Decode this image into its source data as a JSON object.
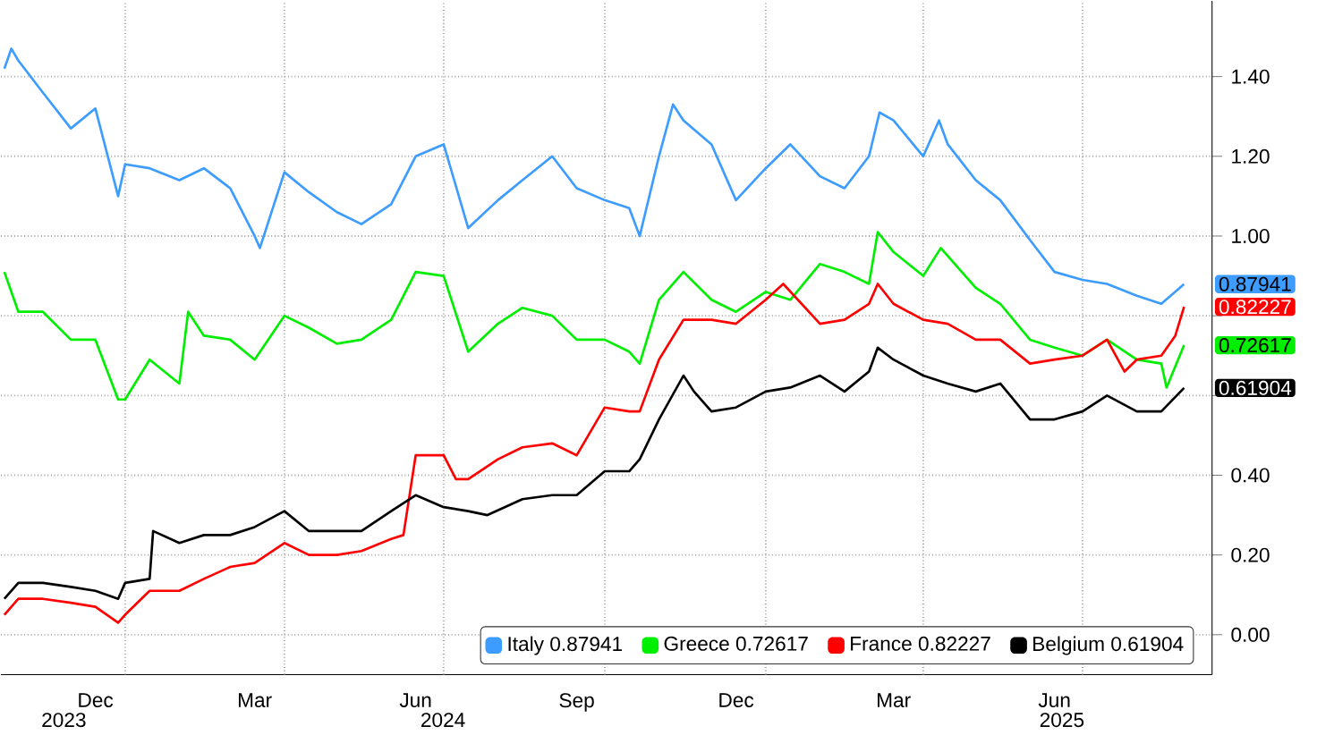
{
  "chart_data": {
    "type": "line",
    "xlim": [
      "2023-10-22",
      "2025-09-13"
    ],
    "ylim": [
      -0.1,
      1.59
    ],
    "xticks": [
      {
        "value": "2023-12-15",
        "label": "Dec"
      },
      {
        "value": "2024-03-15",
        "label": "Mar"
      },
      {
        "value": "2024-06-15",
        "label": "Jun"
      },
      {
        "value": "2024-09-15",
        "label": "Sep"
      },
      {
        "value": "2024-12-15",
        "label": "Dec"
      },
      {
        "value": "2025-03-15",
        "label": "Mar"
      },
      {
        "value": "2025-06-15",
        "label": "Jun"
      },
      {
        "value": "2024-01-01",
        "label": null
      },
      {
        "value": "2024-04-01",
        "label": null
      },
      {
        "value": "2024-07-01",
        "label": null
      },
      {
        "value": "2024-10-01",
        "label": null
      },
      {
        "value": "2025-01-01",
        "label": null
      },
      {
        "value": "2025-04-01",
        "label": null
      },
      {
        "value": "2025-07-01",
        "label": null
      }
    ],
    "yticks": [
      {
        "value": 0,
        "label": "0.00"
      },
      {
        "value": 0.2,
        "label": "0.20"
      },
      {
        "value": 0.4,
        "label": "0.40"
      },
      {
        "value": 0.6,
        "label": null
      },
      {
        "value": 0.8,
        "label": null
      },
      {
        "value": 1.0,
        "label": "1.00"
      },
      {
        "value": 1.2,
        "label": "1.20"
      },
      {
        "value": 1.4,
        "label": "1.40"
      }
    ],
    "grid": true,
    "legend": "bottom right",
    "line_style": "solid",
    "annotations": [
      "2023",
      "2024",
      "2025"
    ],
    "series": [
      {
        "name": "Italy 0.87941",
        "color": "#3d9cff",
        "x": [
          "2023-10-24",
          "2023-10-28",
          "2023-11-01",
          "2023-11-15",
          "2023-12-01",
          "2023-12-15",
          "2023-12-28",
          "2024-01-01",
          "2024-01-15",
          "2024-02-01",
          "2024-02-15",
          "2024-03-01",
          "2024-03-15",
          "2024-03-18",
          "2024-04-01",
          "2024-04-15",
          "2024-05-01",
          "2024-05-15",
          "2024-06-01",
          "2024-06-15",
          "2024-07-01",
          "2024-07-15",
          "2024-08-01",
          "2024-08-15",
          "2024-09-01",
          "2024-09-15",
          "2024-10-01",
          "2024-10-15",
          "2024-10-21",
          "2024-11-01",
          "2024-11-09",
          "2024-11-15",
          "2024-12-01",
          "2024-12-15",
          "2025-01-01",
          "2025-01-15",
          "2025-02-01",
          "2025-02-15",
          "2025-03-01",
          "2025-03-07",
          "2025-03-15",
          "2025-04-01",
          "2025-04-10",
          "2025-04-15",
          "2025-05-01",
          "2025-05-15",
          "2025-06-01",
          "2025-06-15",
          "2025-07-01",
          "2025-07-15",
          "2025-08-01",
          "2025-08-15",
          "2025-08-28"
        ],
        "values": [
          1.42,
          1.47,
          1.44,
          1.36,
          1.27,
          1.32,
          1.1,
          1.18,
          1.17,
          1.14,
          1.17,
          1.12,
          1.0,
          0.97,
          1.16,
          1.11,
          1.06,
          1.03,
          1.08,
          1.2,
          1.23,
          1.02,
          1.09,
          1.14,
          1.2,
          1.12,
          1.09,
          1.07,
          1.0,
          1.2,
          1.33,
          1.29,
          1.23,
          1.09,
          1.17,
          1.23,
          1.15,
          1.12,
          1.2,
          1.31,
          1.29,
          1.2,
          1.29,
          1.23,
          1.14,
          1.09,
          0.99,
          0.91,
          0.89,
          0.88,
          0.85,
          0.83,
          0.87941
        ],
        "value_labels": [
          null,
          null,
          null,
          null,
          null,
          null,
          null,
          null,
          null,
          null,
          null,
          null,
          null,
          null,
          null,
          null,
          null,
          null,
          null,
          null,
          null,
          null,
          null,
          null,
          null,
          null,
          null,
          null,
          null,
          null,
          null,
          null,
          null,
          null,
          null,
          null,
          null,
          null,
          null,
          null,
          null,
          null,
          null,
          null,
          null,
          null,
          null,
          null,
          null,
          null,
          null,
          null,
          "0.87941"
        ]
      },
      {
        "name": "Greece 0.72617",
        "color": "#00ee00",
        "x": [
          "2023-10-24",
          "2023-11-01",
          "2023-11-15",
          "2023-12-01",
          "2023-12-15",
          "2023-12-28",
          "2024-01-01",
          "2024-01-15",
          "2024-02-01",
          "2024-02-06",
          "2024-02-15",
          "2024-03-01",
          "2024-03-15",
          "2024-04-01",
          "2024-04-15",
          "2024-05-01",
          "2024-05-15",
          "2024-06-01",
          "2024-06-15",
          "2024-07-01",
          "2024-07-15",
          "2024-08-01",
          "2024-08-15",
          "2024-09-01",
          "2024-09-15",
          "2024-10-01",
          "2024-10-15",
          "2024-10-21",
          "2024-11-01",
          "2024-11-15",
          "2024-12-01",
          "2024-12-15",
          "2025-01-01",
          "2025-01-15",
          "2025-02-01",
          "2025-02-15",
          "2025-03-01",
          "2025-03-06",
          "2025-03-15",
          "2025-04-01",
          "2025-04-11",
          "2025-05-01",
          "2025-05-15",
          "2025-06-01",
          "2025-06-15",
          "2025-07-01",
          "2025-07-15",
          "2025-08-01",
          "2025-08-15",
          "2025-08-18",
          "2025-08-28"
        ],
        "values": [
          0.91,
          0.81,
          0.81,
          0.74,
          0.74,
          0.59,
          0.59,
          0.69,
          0.63,
          0.81,
          0.75,
          0.74,
          0.69,
          0.8,
          0.77,
          0.73,
          0.74,
          0.79,
          0.91,
          0.9,
          0.71,
          0.78,
          0.82,
          0.8,
          0.74,
          0.74,
          0.71,
          0.68,
          0.84,
          0.91,
          0.84,
          0.81,
          0.86,
          0.84,
          0.93,
          0.91,
          0.88,
          1.01,
          0.96,
          0.9,
          0.97,
          0.87,
          0.83,
          0.74,
          0.72,
          0.7,
          0.74,
          0.69,
          0.68,
          0.62,
          0.72617
        ],
        "value_labels": [
          null,
          null,
          null,
          null,
          null,
          null,
          null,
          null,
          null,
          null,
          null,
          null,
          null,
          null,
          null,
          null,
          null,
          null,
          null,
          null,
          null,
          null,
          null,
          null,
          null,
          null,
          null,
          null,
          null,
          null,
          null,
          null,
          null,
          null,
          null,
          null,
          null,
          null,
          null,
          null,
          null,
          null,
          null,
          null,
          null,
          null,
          null,
          null,
          null,
          null,
          "0.72617"
        ]
      },
      {
        "name": "France 0.82227",
        "color": "#ff0000",
        "x": [
          "2023-10-24",
          "2023-11-01",
          "2023-11-15",
          "2023-12-01",
          "2023-12-15",
          "2023-12-28",
          "2024-01-01",
          "2024-01-15",
          "2024-02-01",
          "2024-02-15",
          "2024-03-01",
          "2024-03-15",
          "2024-04-01",
          "2024-04-15",
          "2024-05-01",
          "2024-05-15",
          "2024-06-01",
          "2024-06-08",
          "2024-06-15",
          "2024-07-01",
          "2024-07-08",
          "2024-07-15",
          "2024-08-01",
          "2024-08-15",
          "2024-09-01",
          "2024-09-15",
          "2024-10-01",
          "2024-10-15",
          "2024-10-21",
          "2024-11-01",
          "2024-11-15",
          "2024-12-01",
          "2024-12-15",
          "2025-01-01",
          "2025-01-11",
          "2025-02-01",
          "2025-02-15",
          "2025-03-01",
          "2025-03-06",
          "2025-03-15",
          "2025-04-01",
          "2025-04-15",
          "2025-05-01",
          "2025-05-15",
          "2025-06-01",
          "2025-06-15",
          "2025-07-01",
          "2025-07-15",
          "2025-07-25",
          "2025-08-01",
          "2025-08-15",
          "2025-08-23",
          "2025-08-28"
        ],
        "values": [
          0.05,
          0.09,
          0.09,
          0.08,
          0.07,
          0.03,
          0.05,
          0.11,
          0.11,
          0.14,
          0.17,
          0.18,
          0.23,
          0.2,
          0.2,
          0.21,
          0.24,
          0.25,
          0.45,
          0.45,
          0.39,
          0.39,
          0.44,
          0.47,
          0.48,
          0.45,
          0.57,
          0.56,
          0.56,
          0.69,
          0.79,
          0.79,
          0.78,
          0.84,
          0.88,
          0.78,
          0.79,
          0.83,
          0.88,
          0.83,
          0.79,
          0.78,
          0.74,
          0.74,
          0.68,
          0.69,
          0.7,
          0.74,
          0.66,
          0.69,
          0.7,
          0.75,
          0.82227
        ],
        "value_labels": [
          null,
          null,
          null,
          null,
          null,
          null,
          null,
          null,
          null,
          null,
          null,
          null,
          null,
          null,
          null,
          null,
          null,
          null,
          null,
          null,
          null,
          null,
          null,
          null,
          null,
          null,
          null,
          null,
          null,
          null,
          null,
          null,
          null,
          null,
          null,
          null,
          null,
          null,
          null,
          null,
          null,
          null,
          null,
          null,
          null,
          null,
          null,
          null,
          null,
          null,
          null,
          null,
          "0.82227"
        ]
      },
      {
        "name": "Belgium 0.61904",
        "color": "#000000",
        "x": [
          "2023-10-24",
          "2023-11-01",
          "2023-11-15",
          "2023-12-01",
          "2023-12-15",
          "2023-12-28",
          "2024-01-01",
          "2024-01-15",
          "2024-01-17",
          "2024-02-01",
          "2024-02-15",
          "2024-03-01",
          "2024-03-15",
          "2024-04-01",
          "2024-04-15",
          "2024-05-01",
          "2024-05-15",
          "2024-06-01",
          "2024-06-15",
          "2024-07-01",
          "2024-07-15",
          "2024-07-26",
          "2024-08-15",
          "2024-09-01",
          "2024-09-15",
          "2024-10-01",
          "2024-10-15",
          "2024-10-21",
          "2024-11-01",
          "2024-11-15",
          "2024-11-21",
          "2024-12-01",
          "2024-12-15",
          "2025-01-01",
          "2025-01-15",
          "2025-02-01",
          "2025-02-15",
          "2025-03-01",
          "2025-03-06",
          "2025-03-15",
          "2025-04-01",
          "2025-04-15",
          "2025-05-01",
          "2025-05-15",
          "2025-06-01",
          "2025-06-15",
          "2025-07-01",
          "2025-07-15",
          "2025-08-01",
          "2025-08-15",
          "2025-08-28"
        ],
        "values": [
          0.09,
          0.13,
          0.13,
          0.12,
          0.11,
          0.09,
          0.13,
          0.14,
          0.26,
          0.23,
          0.25,
          0.25,
          0.27,
          0.31,
          0.26,
          0.26,
          0.26,
          0.31,
          0.35,
          0.32,
          0.31,
          0.3,
          0.34,
          0.35,
          0.35,
          0.41,
          0.41,
          0.44,
          0.54,
          0.65,
          0.61,
          0.56,
          0.57,
          0.61,
          0.62,
          0.65,
          0.61,
          0.66,
          0.72,
          0.69,
          0.65,
          0.63,
          0.61,
          0.63,
          0.54,
          0.54,
          0.56,
          0.6,
          0.56,
          0.56,
          0.61904
        ],
        "value_labels": [
          null,
          null,
          null,
          null,
          null,
          null,
          null,
          null,
          null,
          null,
          null,
          null,
          null,
          null,
          null,
          null,
          null,
          null,
          null,
          null,
          null,
          null,
          null,
          null,
          null,
          null,
          null,
          null,
          null,
          null,
          null,
          null,
          null,
          null,
          null,
          null,
          null,
          null,
          null,
          null,
          null,
          null,
          null,
          null,
          null,
          null,
          null,
          null,
          null,
          null,
          "0.61904"
        ]
      }
    ]
  }
}
